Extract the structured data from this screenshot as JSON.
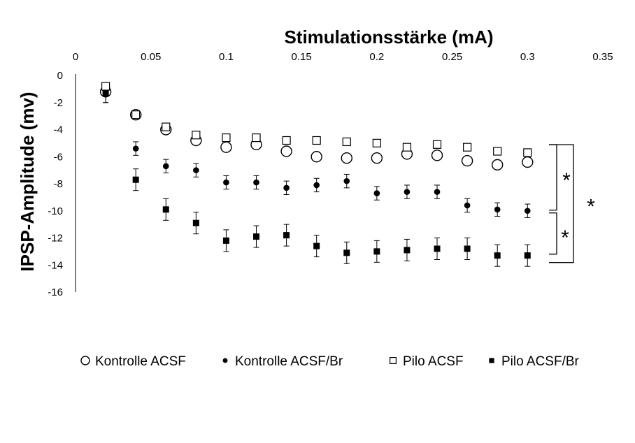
{
  "chart_data": {
    "type": "scatter",
    "xlabel": "Stimulationsstärke (mA)",
    "ylabel": "IPSP-Amplitude (mv)",
    "xlim": [
      0,
      0.35
    ],
    "ylim": [
      -16,
      0
    ],
    "x_ticks": [
      "0",
      "0.05",
      "0.1",
      "0.15",
      "0.2",
      "0.25",
      "0.3",
      "0.35"
    ],
    "y_ticks": [
      "0",
      "-2",
      "-4",
      "-6",
      "-8",
      "-10",
      "-12",
      "-14",
      "-16"
    ],
    "x_axis_position": "top",
    "grid": false,
    "legend_position": "bottom",
    "x": [
      0.02,
      0.04,
      0.06,
      0.08,
      0.1,
      0.12,
      0.14,
      0.16,
      0.18,
      0.2,
      0.22,
      0.24,
      0.26,
      0.28,
      0.3
    ],
    "series": [
      {
        "name": "Kontrolle ACSF",
        "marker": "open-circle",
        "y": [
          -1.2,
          -2.9,
          -4.0,
          -4.8,
          -5.3,
          -5.1,
          -5.6,
          -6.0,
          -6.1,
          -6.1,
          -5.8,
          -5.9,
          -6.3,
          -6.6,
          -6.4
        ]
      },
      {
        "name": "Kontrolle ACSF/Br",
        "marker": "filled-circle",
        "y": [
          -1.4,
          -5.4,
          -6.7,
          -7.0,
          -7.9,
          -7.9,
          -8.3,
          -8.1,
          -7.8,
          -8.7,
          -8.6,
          -8.6,
          -9.6,
          -9.9,
          -10.0
        ],
        "error": [
          0.6,
          0.5,
          0.5,
          0.5,
          0.5,
          0.5,
          0.5,
          0.5,
          0.5,
          0.5,
          0.5,
          0.5,
          0.5,
          0.5,
          0.5
        ]
      },
      {
        "name": "Pilo ACSF",
        "marker": "open-square",
        "y": [
          -0.8,
          -2.9,
          -3.8,
          -4.4,
          -4.6,
          -4.6,
          -4.8,
          -4.8,
          -4.9,
          -5.0,
          -5.3,
          -5.1,
          -5.3,
          -5.6,
          -5.7
        ]
      },
      {
        "name": "Pilo ACSF/Br",
        "marker": "filled-square",
        "y": [
          -1.3,
          -7.7,
          -9.9,
          -10.9,
          -12.2,
          -11.9,
          -11.8,
          -12.6,
          -13.1,
          -13.0,
          -12.9,
          -12.8,
          -12.8,
          -13.3,
          -13.3
        ],
        "error": [
          0.7,
          0.8,
          0.8,
          0.8,
          0.8,
          0.8,
          0.8,
          0.8,
          0.8,
          0.8,
          0.8,
          0.8,
          0.8,
          0.8,
          0.8
        ]
      }
    ],
    "annotations": [
      {
        "text": "*",
        "between": [
          "Kontrolle ACSF",
          "Kontrolle ACSF/Br"
        ]
      },
      {
        "text": "*",
        "between": [
          "Kontrolle ACSF/Br",
          "Pilo ACSF/Br"
        ]
      },
      {
        "text": "*",
        "between": [
          "Kontrolle ACSF",
          "Pilo ACSF/Br"
        ]
      }
    ]
  }
}
